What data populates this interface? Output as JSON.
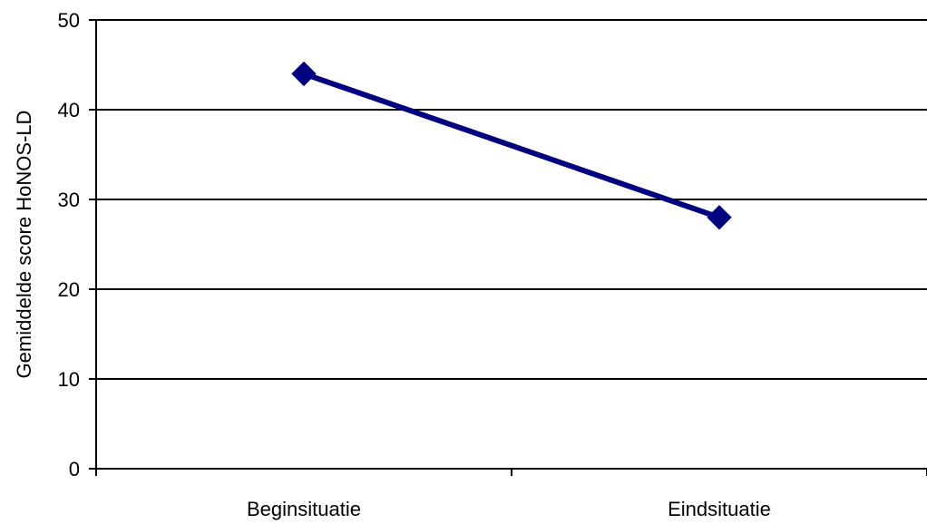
{
  "chart_data": {
    "type": "line",
    "categories": [
      "Beginsituatie",
      "Eindsituatie"
    ],
    "series": [
      {
        "values": [
          44,
          28
        ],
        "color": "#000080",
        "marker": "diamond"
      }
    ],
    "title": "",
    "xlabel": "",
    "ylabel": "Gemiddelde score HoNOS-LD",
    "ylim": [
      0,
      50
    ],
    "yticks": [
      0,
      10,
      20,
      30,
      40,
      50
    ],
    "grid": true,
    "legend": "none",
    "colors": {
      "line": "#000080",
      "grid": "#000000",
      "axis": "#000000"
    }
  }
}
